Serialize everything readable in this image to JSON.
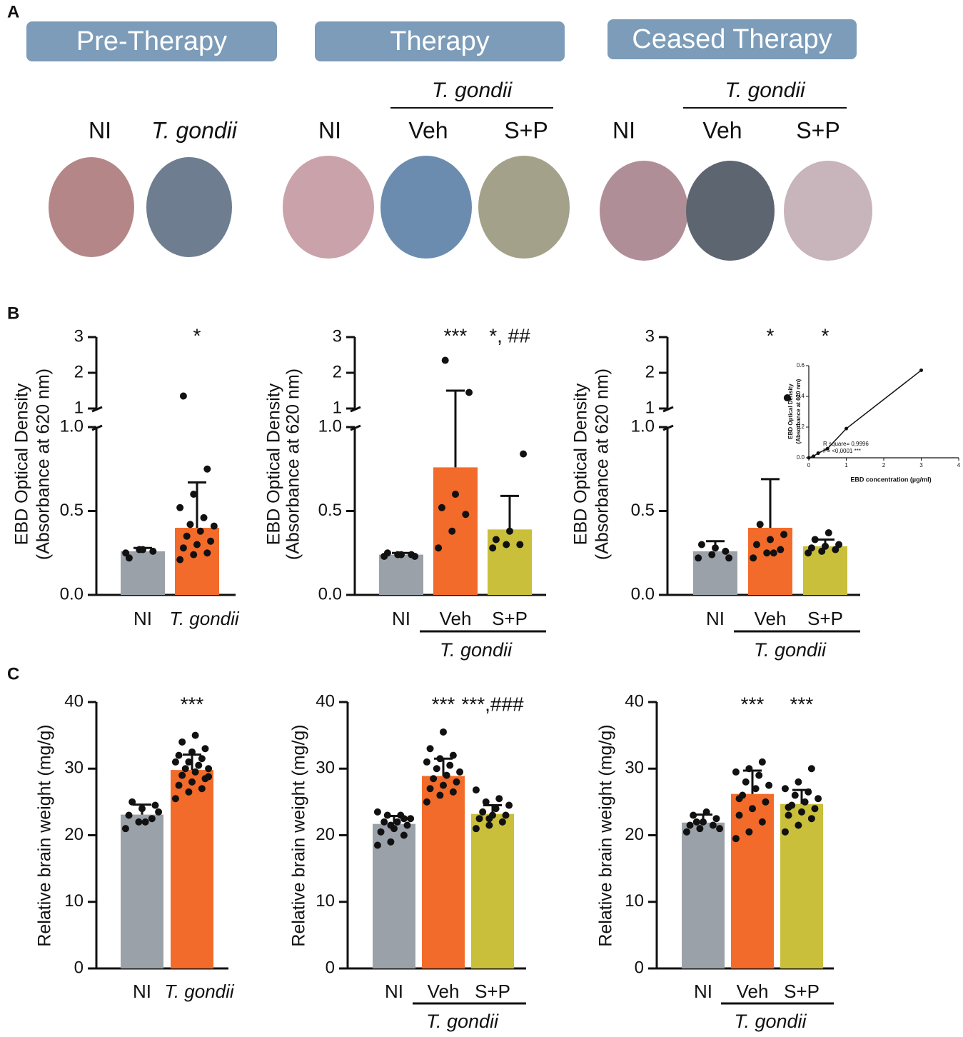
{
  "panel_labels": [
    "A",
    "B",
    "C"
  ],
  "panel_a": {
    "phases": [
      {
        "title": "Pre-Therapy",
        "groups": [
          "NI",
          "T. gondii"
        ]
      },
      {
        "title": "Therapy",
        "groups": [
          "NI",
          "Veh",
          "S+P"
        ],
        "group_label": "T. gondii"
      },
      {
        "title": "Ceased Therapy",
        "groups": [
          "NI",
          "Veh",
          "S+P"
        ],
        "group_label": "T. gondii"
      }
    ]
  },
  "chart_data": [
    {
      "type": "bar",
      "y_label": [
        "EBD Optical Density",
        "(Absorbance at 620 nm)"
      ],
      "categories": [
        "NI",
        "T. gondii"
      ],
      "values": [
        0.26,
        0.4
      ],
      "errors": [
        0.02,
        0.27
      ],
      "points": [
        [
          0.25,
          0.27,
          0.26,
          0.22,
          0.27
        ],
        [
          0.21,
          0.24,
          0.25,
          0.28,
          0.3,
          0.32,
          0.35,
          0.38,
          0.41,
          0.42,
          0.46,
          0.52,
          0.6,
          0.75,
          1.35
        ]
      ],
      "colors": [
        "#9aa1a9",
        "#f26b2a"
      ],
      "annotations": [
        null,
        "*"
      ],
      "ylim": [
        0,
        1
      ],
      "yticks": [
        {
          "value": 0,
          "label": "0.0"
        },
        {
          "value": 0.5,
          "label": "0.5"
        },
        {
          "value": 1,
          "label": "1.0"
        }
      ],
      "ylim_upper": [
        1,
        3
      ],
      "yticks_upper": [
        1,
        2,
        3
      ]
    },
    {
      "type": "bar",
      "y_label": [
        "EBD Optical Density",
        "(Absorbance at 620 nm)"
      ],
      "categories": [
        "NI",
        "Veh",
        "S+P"
      ],
      "group_label": "T. gondii",
      "values": [
        0.24,
        0.76,
        0.39
      ],
      "errors": [
        0.01,
        0.74,
        0.2
      ],
      "points": [
        [
          0.23,
          0.24,
          0.24,
          0.25,
          0.24,
          0.23
        ],
        [
          0.28,
          0.38,
          0.48,
          0.52,
          0.6,
          1.45,
          2.35
        ],
        [
          0.28,
          0.3,
          0.3,
          0.33,
          0.38,
          0.84
        ]
      ],
      "colors": [
        "#9aa1a9",
        "#f26b2a",
        "#c9bf3a"
      ],
      "annotations": [
        null,
        "***",
        "*, ##"
      ],
      "ylim": [
        0,
        1
      ],
      "yticks": [
        {
          "value": 0,
          "label": "0.0"
        },
        {
          "value": 0.5,
          "label": "0.5"
        },
        {
          "value": 1,
          "label": "1.0"
        }
      ],
      "ylim_upper": [
        1,
        3
      ],
      "yticks_upper": [
        1,
        2,
        3
      ]
    },
    {
      "type": "bar",
      "y_label": [
        "EBD Optical Density",
        "(Absorbance at 620 nm)"
      ],
      "categories": [
        "NI",
        "Veh",
        "S+P"
      ],
      "group_label": "T. gondii",
      "values": [
        0.26,
        0.4,
        0.29
      ],
      "errors": [
        0.06,
        0.29,
        0.04
      ],
      "points": [
        [
          0.22,
          0.24,
          0.26,
          0.3,
          0.28,
          0.22
        ],
        [
          0.22,
          0.25,
          0.27,
          0.3,
          0.33,
          0.36,
          0.42,
          0.25,
          1.3
        ],
        [
          0.25,
          0.26,
          0.27,
          0.28,
          0.29,
          0.3,
          0.33,
          0.37
        ]
      ],
      "colors": [
        "#9aa1a9",
        "#f26b2a",
        "#c9bf3a"
      ],
      "annotations": [
        null,
        "*",
        "*"
      ],
      "ylim": [
        0,
        1
      ],
      "yticks": [
        {
          "value": 0,
          "label": "0.0"
        },
        {
          "value": 0.5,
          "label": "0.5"
        },
        {
          "value": 1,
          "label": "1.0"
        }
      ],
      "ylim_upper": [
        1,
        3
      ],
      "yticks_upper": [
        1,
        2,
        3
      ]
    },
    {
      "type": "bar",
      "y_label": [
        "Relative brain weight (mg/g)"
      ],
      "categories": [
        "NI",
        "T. gondii"
      ],
      "values": [
        23.1,
        29.8
      ],
      "errors": [
        1.5,
        2.3
      ],
      "points": [
        [
          21,
          22,
          22.5,
          23,
          24,
          24.5,
          25,
          22,
          23.5
        ],
        [
          25.5,
          26.5,
          27,
          27.5,
          28,
          28.5,
          29,
          29.5,
          30,
          30,
          30.5,
          31,
          31,
          31.5,
          32,
          32.5,
          33,
          34,
          35,
          28.8
        ]
      ],
      "colors": [
        "#9aa1a9",
        "#f26b2a"
      ],
      "annotations": [
        null,
        "***"
      ],
      "ylim": [
        0,
        40
      ],
      "yticks": [
        0,
        10,
        20,
        30,
        40
      ]
    },
    {
      "type": "bar",
      "y_label": [
        "Relative brain weight (mg/g)"
      ],
      "categories": [
        "NI",
        "Veh",
        "S+P"
      ],
      "group_label": "T. gondii",
      "values": [
        21.7,
        28.9,
        23.2
      ],
      "errors": [
        1.2,
        2.6,
        1.3
      ],
      "points": [
        [
          18.5,
          19,
          20,
          20.5,
          21,
          21.5,
          22,
          22,
          22.5,
          23,
          23,
          23.5,
          21.5,
          22.5
        ],
        [
          25,
          26,
          26.5,
          27,
          27.5,
          28,
          28.5,
          29,
          29.5,
          30,
          30.5,
          31,
          31.5,
          32,
          33,
          35.5
        ],
        [
          21,
          21.5,
          22,
          22.5,
          23,
          23,
          23.5,
          24,
          24.5,
          25,
          25.5,
          26.8,
          22.5
        ]
      ],
      "colors": [
        "#9aa1a9",
        "#f26b2a",
        "#c9bf3a"
      ],
      "annotations": [
        null,
        "***",
        "***,###"
      ],
      "ylim": [
        0,
        40
      ],
      "yticks": [
        0,
        10,
        20,
        30,
        40
      ]
    },
    {
      "type": "bar",
      "y_label": [
        "Relative brain weight (mg/g)"
      ],
      "categories": [
        "NI",
        "Veh",
        "S+P"
      ],
      "group_label": "T. gondii",
      "values": [
        21.9,
        26.2,
        24.7
      ],
      "errors": [
        1.2,
        3.5,
        2.1
      ],
      "points": [
        [
          20.5,
          21,
          21.5,
          21.5,
          22,
          22.5,
          23,
          23.5,
          21,
          22
        ],
        [
          19.5,
          20.5,
          22,
          23,
          24,
          25,
          26,
          27,
          27.5,
          28,
          29,
          29.5,
          30,
          31,
          25.5
        ],
        [
          20.5,
          21.5,
          22.5,
          23,
          23.5,
          24,
          24.5,
          25,
          25.5,
          26,
          26.5,
          27,
          28,
          30,
          24.2
        ]
      ],
      "colors": [
        "#9aa1a9",
        "#f26b2a",
        "#c9bf3a"
      ],
      "annotations": [
        null,
        "***",
        "***"
      ],
      "ylim": [
        0,
        40
      ],
      "yticks": [
        0,
        10,
        20,
        30,
        40
      ]
    },
    {
      "type": "line",
      "x_label": "EBD concentration (µg/ml)",
      "y_label": [
        "EBD Optical Density",
        "(Absorbance at 620 nm)"
      ],
      "x": [
        0,
        0.125,
        0.25,
        0.5,
        1,
        3
      ],
      "values": [
        0,
        0.01,
        0.03,
        0.06,
        0.19,
        0.57
      ],
      "xlim": [
        0,
        4
      ],
      "xticks": [
        0,
        1,
        2,
        3,
        4
      ],
      "ylim": [
        0,
        0.6
      ],
      "yticks": [
        {
          "value": 0,
          "label": "0.0"
        },
        {
          "value": 0.2,
          "label": "0.2"
        },
        {
          "value": 0.4,
          "label": "0.4"
        },
        {
          "value": 0.6,
          "label": "0.6"
        }
      ],
      "annotations": [
        "R square= 0,9996",
        "P= <0,0001 ***"
      ]
    }
  ]
}
